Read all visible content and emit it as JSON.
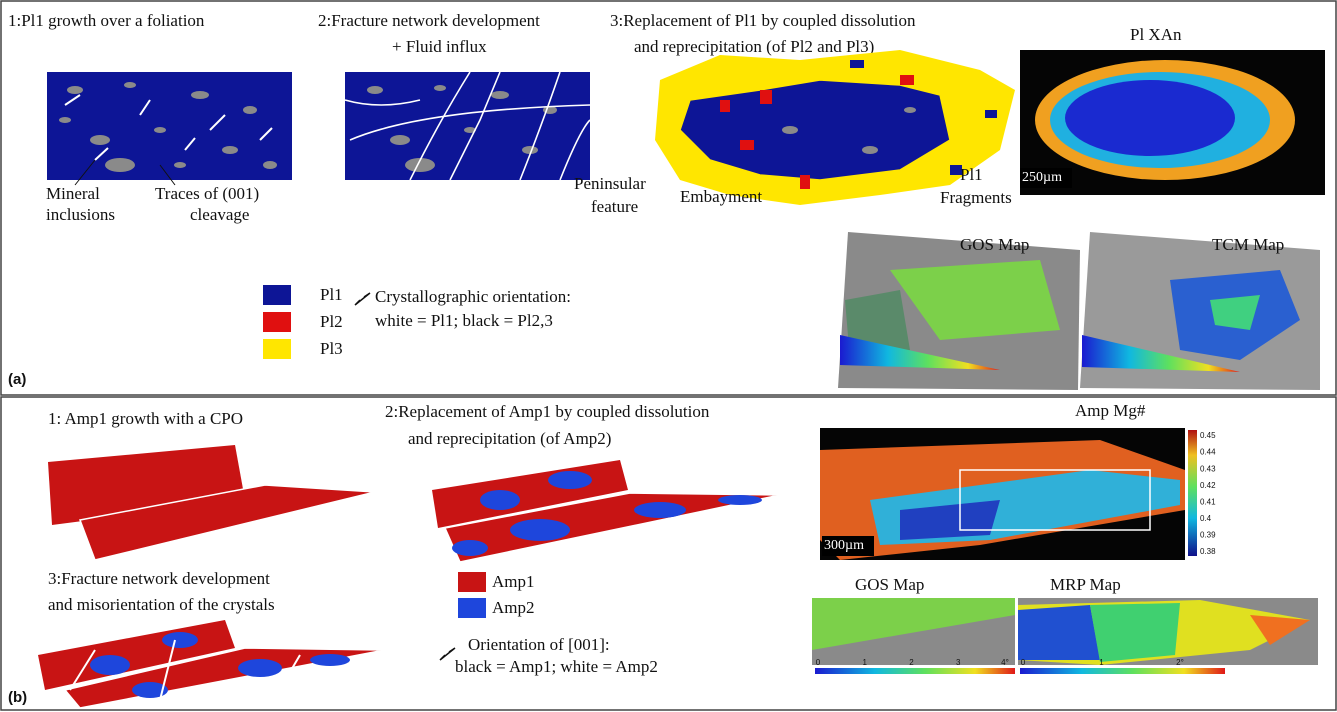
{
  "panel_a": {
    "label": "(a)",
    "step1": "1:Pl1 growth over a foliation",
    "step2": [
      "2:Fracture network development",
      "+ Fluid influx"
    ],
    "step3": [
      "3:Replacement of Pl1 by coupled dissolution",
      "and reprecipitation (of Pl2 and Pl3)"
    ],
    "annotations": {
      "mineral_inclusions": [
        "Mineral",
        "inclusions"
      ],
      "cleavage": [
        "Traces of (001)",
        "cleavage"
      ],
      "peninsular": [
        "Peninsular",
        "feature"
      ],
      "embayment": "Embayment",
      "fragments": [
        "Pl1",
        "Fragments"
      ]
    },
    "legend": [
      {
        "label": "Pl1",
        "color": "#0d1596"
      },
      {
        "label": "Pl2",
        "color": "#e01010"
      },
      {
        "label": "Pl3",
        "color": "#ffe600"
      }
    ],
    "orientation_note": [
      "Crystallographic orientation:",
      "white = Pl1; black = Pl2,3"
    ],
    "map_xan": {
      "title": "Pl XAn",
      "scale": "250µm"
    },
    "map_gos": "GOS Map",
    "map_tcm": "TCM Map"
  },
  "panel_b": {
    "label": "(b)",
    "step1": "1: Amp1 growth with a CPO",
    "step2": [
      "2:Replacement of Amp1 by coupled dissolution",
      "and reprecipitation (of Amp2)"
    ],
    "step3": [
      "3:Fracture network development",
      "and misorientation of the crystals"
    ],
    "legend": [
      {
        "label": "Amp1",
        "color": "#c81414"
      },
      {
        "label": "Amp2",
        "color": "#1e46dc"
      }
    ],
    "orientation_note": [
      "Orientation of  [001]:",
      "black = Amp1; white = Amp2"
    ],
    "map_mg": {
      "title": "Amp Mg#",
      "scale": "300µm",
      "colorbar": [
        "0.45",
        "0.44",
        "0.43",
        "0.42",
        "0.41",
        "0.4",
        "0.39",
        "0.38"
      ]
    },
    "map_gos": {
      "title": "GOS Map",
      "colorbar": [
        "0",
        "1",
        "2",
        "3",
        "4°"
      ]
    },
    "map_mrp": {
      "title": "MRP Map",
      "colorbar": [
        "0",
        "1",
        "2°"
      ]
    }
  }
}
